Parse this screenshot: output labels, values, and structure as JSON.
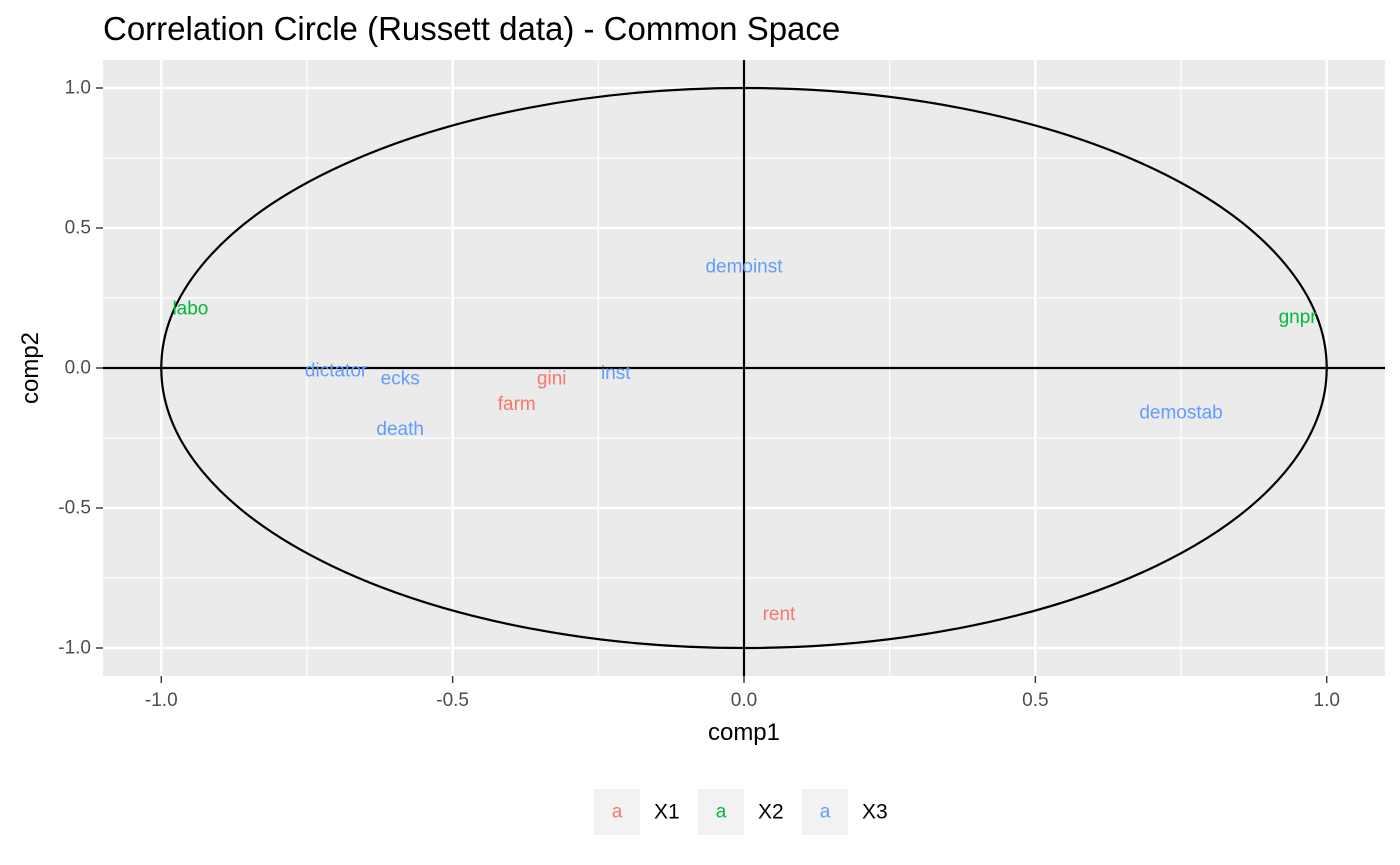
{
  "chart_data": {
    "type": "scatter",
    "title": "Correlation Circle (Russett data) - Common Space",
    "xlabel": "comp1",
    "ylabel": "comp2",
    "xlim": [
      -1.1,
      1.1
    ],
    "ylim": [
      -1.1,
      1.1
    ],
    "x_ticks": [
      -1.0,
      -0.5,
      0.0,
      0.5,
      1.0
    ],
    "y_ticks": [
      -1.0,
      -0.5,
      0.0,
      0.5,
      1.0
    ],
    "x_tick_labels": [
      "-1.0",
      "-0.5",
      "0.0",
      "0.5",
      "1.0"
    ],
    "y_tick_labels": [
      "-1.0",
      "-0.5",
      "0.0",
      "0.5",
      "1.0"
    ],
    "grid": true,
    "circle": {
      "center": [
        0,
        0
      ],
      "radius": 1
    },
    "legend": {
      "position": "bottom",
      "key_glyph": "a",
      "entries": [
        {
          "name": "X1",
          "color": "#F8766D"
        },
        {
          "name": "X2",
          "color": "#00BA38"
        },
        {
          "name": "X3",
          "color": "#619CFF"
        }
      ]
    },
    "points": [
      {
        "label": "gini",
        "group": "X1",
        "x": -0.33,
        "y": -0.04
      },
      {
        "label": "farm",
        "group": "X1",
        "x": -0.39,
        "y": -0.13
      },
      {
        "label": "rent",
        "group": "X1",
        "x": 0.06,
        "y": -0.88
      },
      {
        "label": "gnpr",
        "group": "X2",
        "x": 0.95,
        "y": 0.18
      },
      {
        "label": "labo",
        "group": "X2",
        "x": -0.95,
        "y": 0.21
      },
      {
        "label": "inst",
        "group": "X3",
        "x": -0.22,
        "y": -0.02
      },
      {
        "label": "ecks",
        "group": "X3",
        "x": -0.59,
        "y": -0.04
      },
      {
        "label": "death",
        "group": "X3",
        "x": -0.59,
        "y": -0.22
      },
      {
        "label": "demostab",
        "group": "X3",
        "x": 0.75,
        "y": -0.16
      },
      {
        "label": "demoinst",
        "group": "X3",
        "x": 0.0,
        "y": 0.36
      },
      {
        "label": "dictator",
        "group": "X3",
        "x": -0.7,
        "y": -0.01
      }
    ]
  }
}
